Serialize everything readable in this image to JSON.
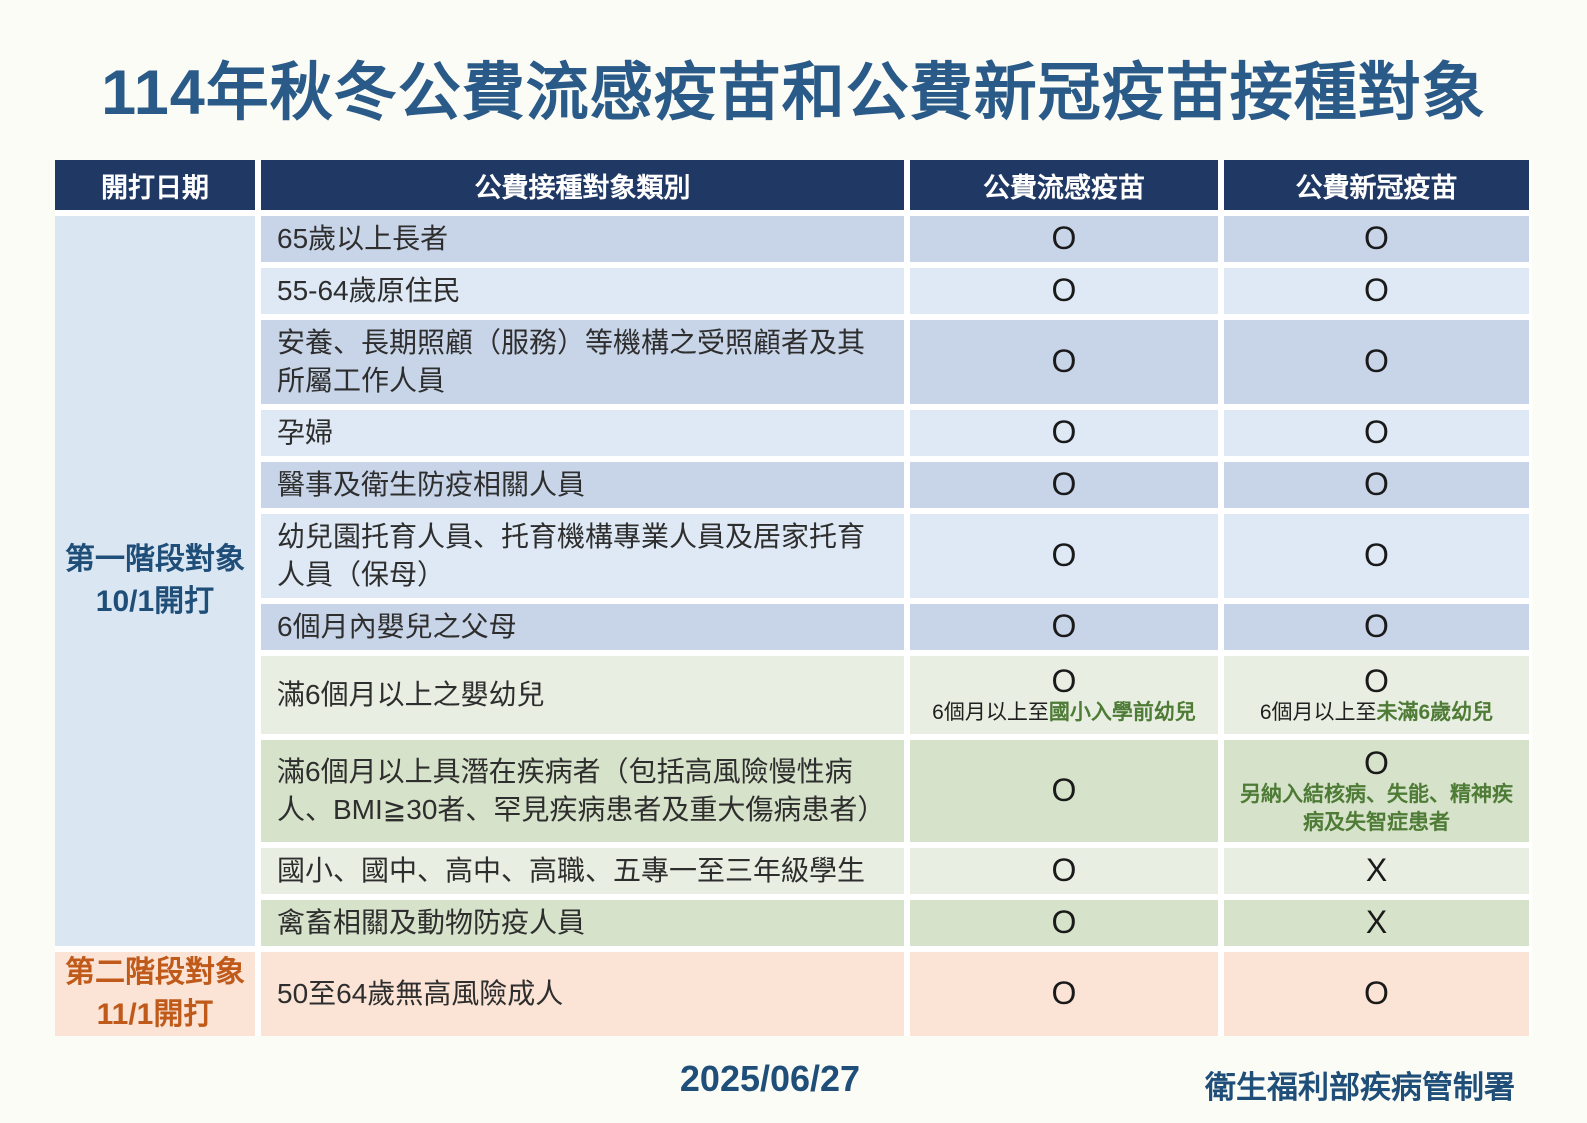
{
  "title": "114年秋冬公費流感疫苗和公費新冠疫苗接種對象",
  "footer": {
    "date": "2025/06/27",
    "agency": "衛生福利部疾病管制署"
  },
  "colors": {
    "header_bg": "#203864",
    "title_text": "#2A5A88",
    "stage1_text": "#1F4E79",
    "stage2_text": "#C05A1A",
    "note_green": "#4E7B36",
    "row_blue_dark": "#C8D5E9",
    "row_blue_light": "#DEE9F5",
    "row_green_light": "#E8EEE1",
    "row_green_dark": "#D6E2C9",
    "stage1_bg": "#DAE7F3",
    "stage2_bg": "#FBE3D5"
  },
  "table": {
    "headers": {
      "schedule": "開打日期",
      "category": "公費接種對象類別",
      "flu": "公費流感疫苗",
      "covid": "公費新冠疫苗"
    },
    "stage1": {
      "line1": "第一階段對象",
      "line2": "10/1開打"
    },
    "stage2": {
      "line1": "第二階段對象",
      "line2": "11/1開打"
    },
    "rows": [
      {
        "category": "65歲以上長者",
        "flu": "O",
        "covid": "O"
      },
      {
        "category": "55-64歲原住民",
        "flu": "O",
        "covid": "O"
      },
      {
        "category": "安養、長期照顧（服務）等機構之受照顧者及其所屬工作人員",
        "flu": "O",
        "covid": "O"
      },
      {
        "category": "孕婦",
        "flu": "O",
        "covid": "O"
      },
      {
        "category": "醫事及衛生防疫相關人員",
        "flu": "O",
        "covid": "O"
      },
      {
        "category": "幼兒園托育人員、托育機構專業人員及居家托育人員（保母）",
        "flu": "O",
        "covid": "O"
      },
      {
        "category": "6個月內嬰兒之父母",
        "flu": "O",
        "covid": "O"
      },
      {
        "category": "滿6個月以上之嬰幼兒",
        "flu": "O",
        "covid": "O",
        "flu_note": {
          "prefix": "6個月以上至",
          "highlight": "國小入學前幼兒"
        },
        "covid_note": {
          "prefix": "6個月以上至",
          "highlight": "未滿6歲幼兒"
        }
      },
      {
        "category": "滿6個月以上具潛在疾病者（包括高風險慢性病人、BMI≧30者、罕見疾病患者及重大傷病患者）",
        "flu": "O",
        "covid": "O",
        "covid_note": {
          "highlight": "另納入結核病、失能、精神疾病及失智症患者"
        }
      },
      {
        "category": "國小、國中、高中、高職、五專一至三年級學生",
        "flu": "O",
        "covid": "X"
      },
      {
        "category": "禽畜相關及動物防疫人員",
        "flu": "O",
        "covid": "X"
      },
      {
        "category": "50至64歲無高風險成人",
        "flu": "O",
        "covid": "O"
      }
    ]
  }
}
